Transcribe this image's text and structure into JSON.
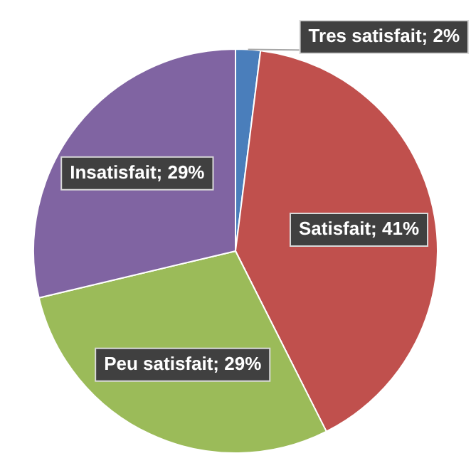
{
  "chart_data": {
    "type": "pie",
    "categories": [
      "Tres satisfait",
      "Satisfait",
      "Peu satisfait",
      "Insatisfait"
    ],
    "values": [
      2,
      41,
      29,
      29
    ],
    "value_labels": [
      "2%",
      "41%",
      "29%",
      "29%"
    ],
    "colors": [
      "#4a7ebb",
      "#c0504d",
      "#9bbb59",
      "#8064a2"
    ],
    "legend": false
  }
}
